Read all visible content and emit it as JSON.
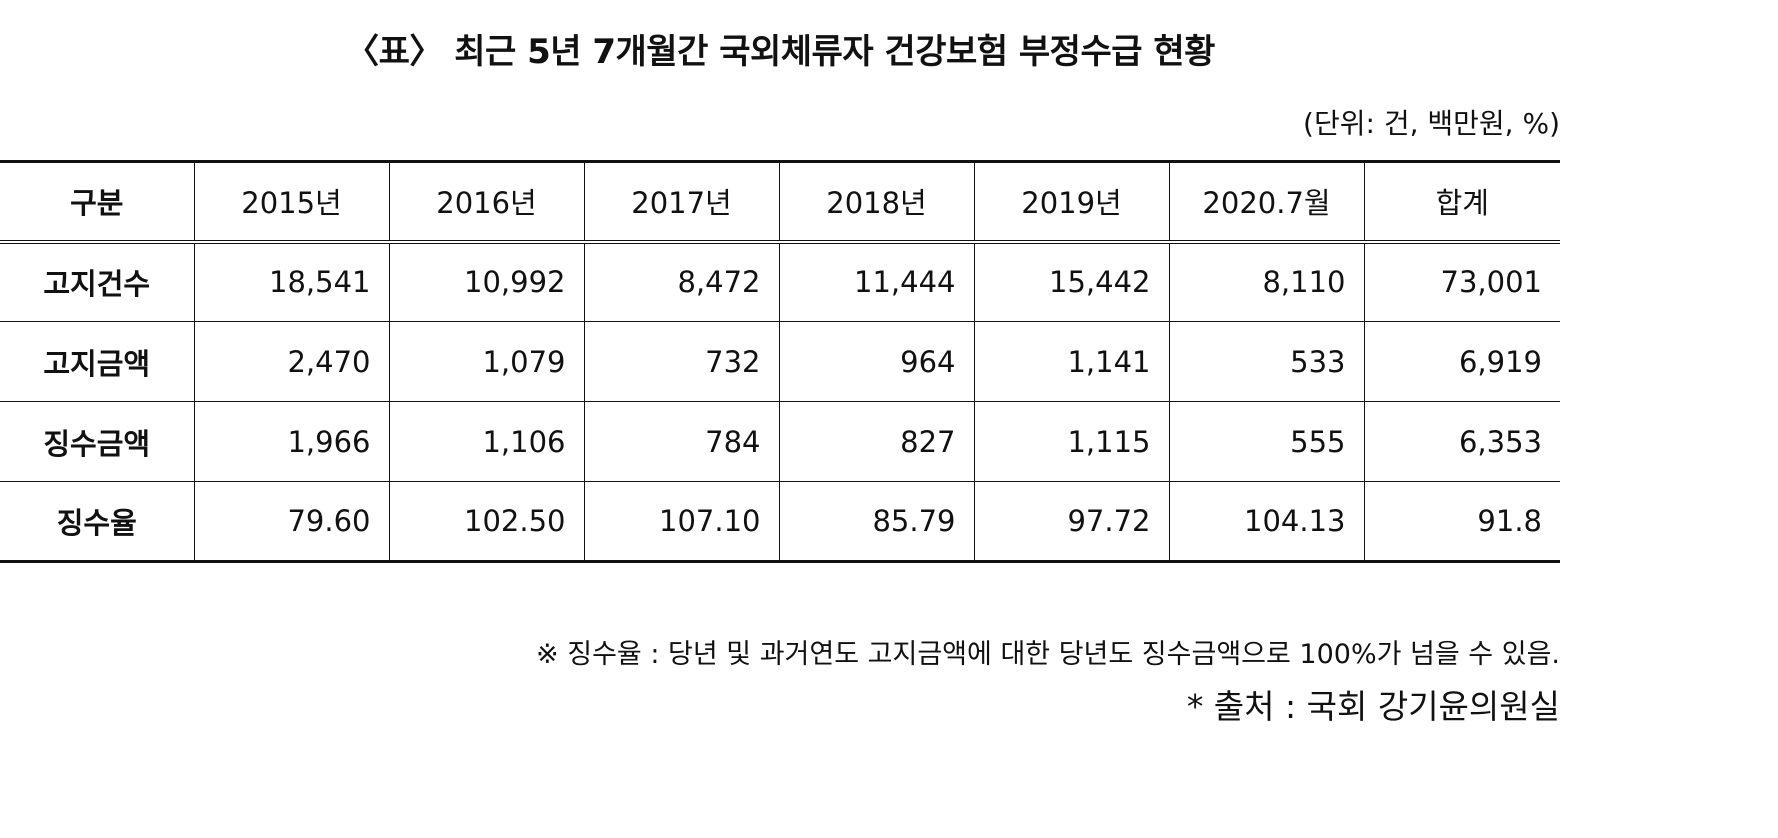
{
  "title": "〈표〉 최근 5년 7개월간 국외체류자 건강보험 부정수급 현황",
  "unit": "(단위: 건, 백만원, %)",
  "table": {
    "header": [
      "구분",
      "2015년",
      "2016년",
      "2017년",
      "2018년",
      "2019년",
      "2020.7월",
      "합계"
    ],
    "rows": [
      {
        "label": "고지건수",
        "values": [
          "18,541",
          "10,992",
          "8,472",
          "11,444",
          "15,442",
          "8,110",
          "73,001"
        ]
      },
      {
        "label": "고지금액",
        "values": [
          "2,470",
          "1,079",
          "732",
          "964",
          "1,141",
          "533",
          "6,919"
        ]
      },
      {
        "label": "징수금액",
        "values": [
          "1,966",
          "1,106",
          "784",
          "827",
          "1,115",
          "555",
          "6,353"
        ]
      },
      {
        "label": "징수율",
        "values": [
          "79.60",
          "102.50",
          "107.10",
          "85.79",
          "97.72",
          "104.13",
          "91.8"
        ]
      }
    ]
  },
  "note": "※ 징수율 : 당년 및 과거연도 고지금액에 대한 당년도 징수금액으로 100%가 넘을 수 있음.",
  "source": "* 출처 : 국회 강기윤의원실"
}
